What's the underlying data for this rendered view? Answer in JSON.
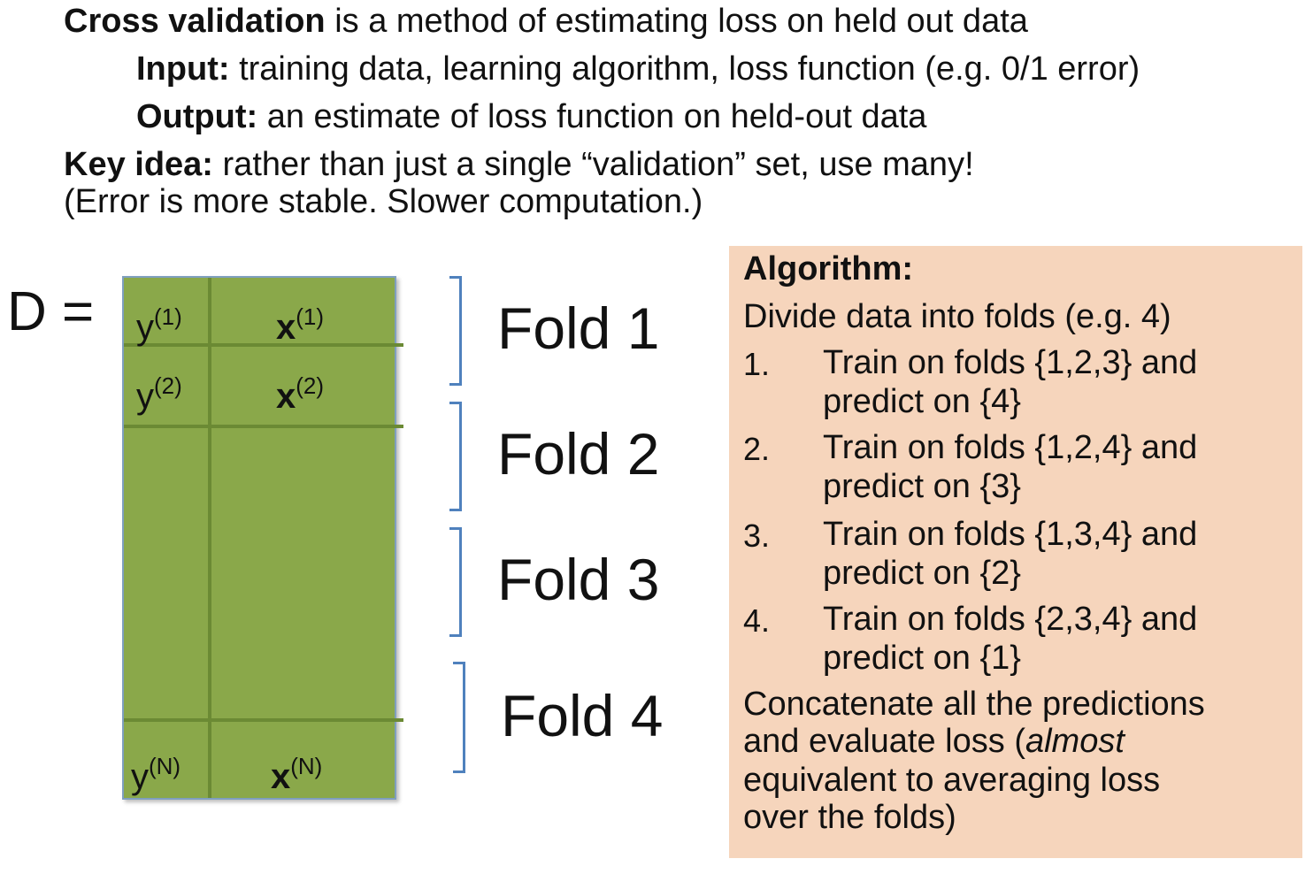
{
  "intro": {
    "line1_bold": "Cross validation",
    "line1_rest": " is a method of estimating loss on held out data",
    "input_label": "Input:",
    "input_text": " training data, learning algorithm, loss function (e.g. 0/1 error)",
    "output_label": "Output:",
    "output_text": " an estimate of loss function on held-out data",
    "key_label": "Key idea:",
    "key_text": " rather than just a single “validation” set, use many!",
    "note": "(Error is more stable. Slower computation.)"
  },
  "matrix": {
    "lhs": "D =",
    "y": "y",
    "x": "x",
    "rows": [
      {
        "y_sup": "(1)",
        "x_sup": "(1)"
      },
      {
        "y_sup": "(2)",
        "x_sup": "(2)"
      },
      {
        "y_sup": "(N)",
        "x_sup": "(N)"
      }
    ]
  },
  "folds": [
    "Fold 1",
    "Fold 2",
    "Fold 3",
    "Fold 4"
  ],
  "algorithm": {
    "title": "Algorithm:",
    "intro": "Divide data into folds (e.g. 4)",
    "steps": [
      {
        "num": "1.",
        "line1": "Train on folds {1,2,3} and",
        "line2": "predict on {4}"
      },
      {
        "num": "2.",
        "line1": "Train on folds {1,2,4} and",
        "line2": "predict on {3}"
      },
      {
        "num": "3.",
        "line1": "Train on folds {1,3,4} and",
        "line2": "predict on {2}"
      },
      {
        "num": "4.",
        "line1": "Train on folds {2,3,4} and",
        "line2": "predict on {1}"
      }
    ],
    "concl1": "Concatenate all the predictions",
    "concl2_a": "and evaluate loss (",
    "concl2_em": "almost",
    "concl3": "equivalent to averaging loss",
    "concl4": "over the folds)"
  },
  "colors": {
    "matrix_fill": "#8aa84a",
    "bracket": "#4f81bd",
    "algorithm_box": "#f6d5bc"
  }
}
